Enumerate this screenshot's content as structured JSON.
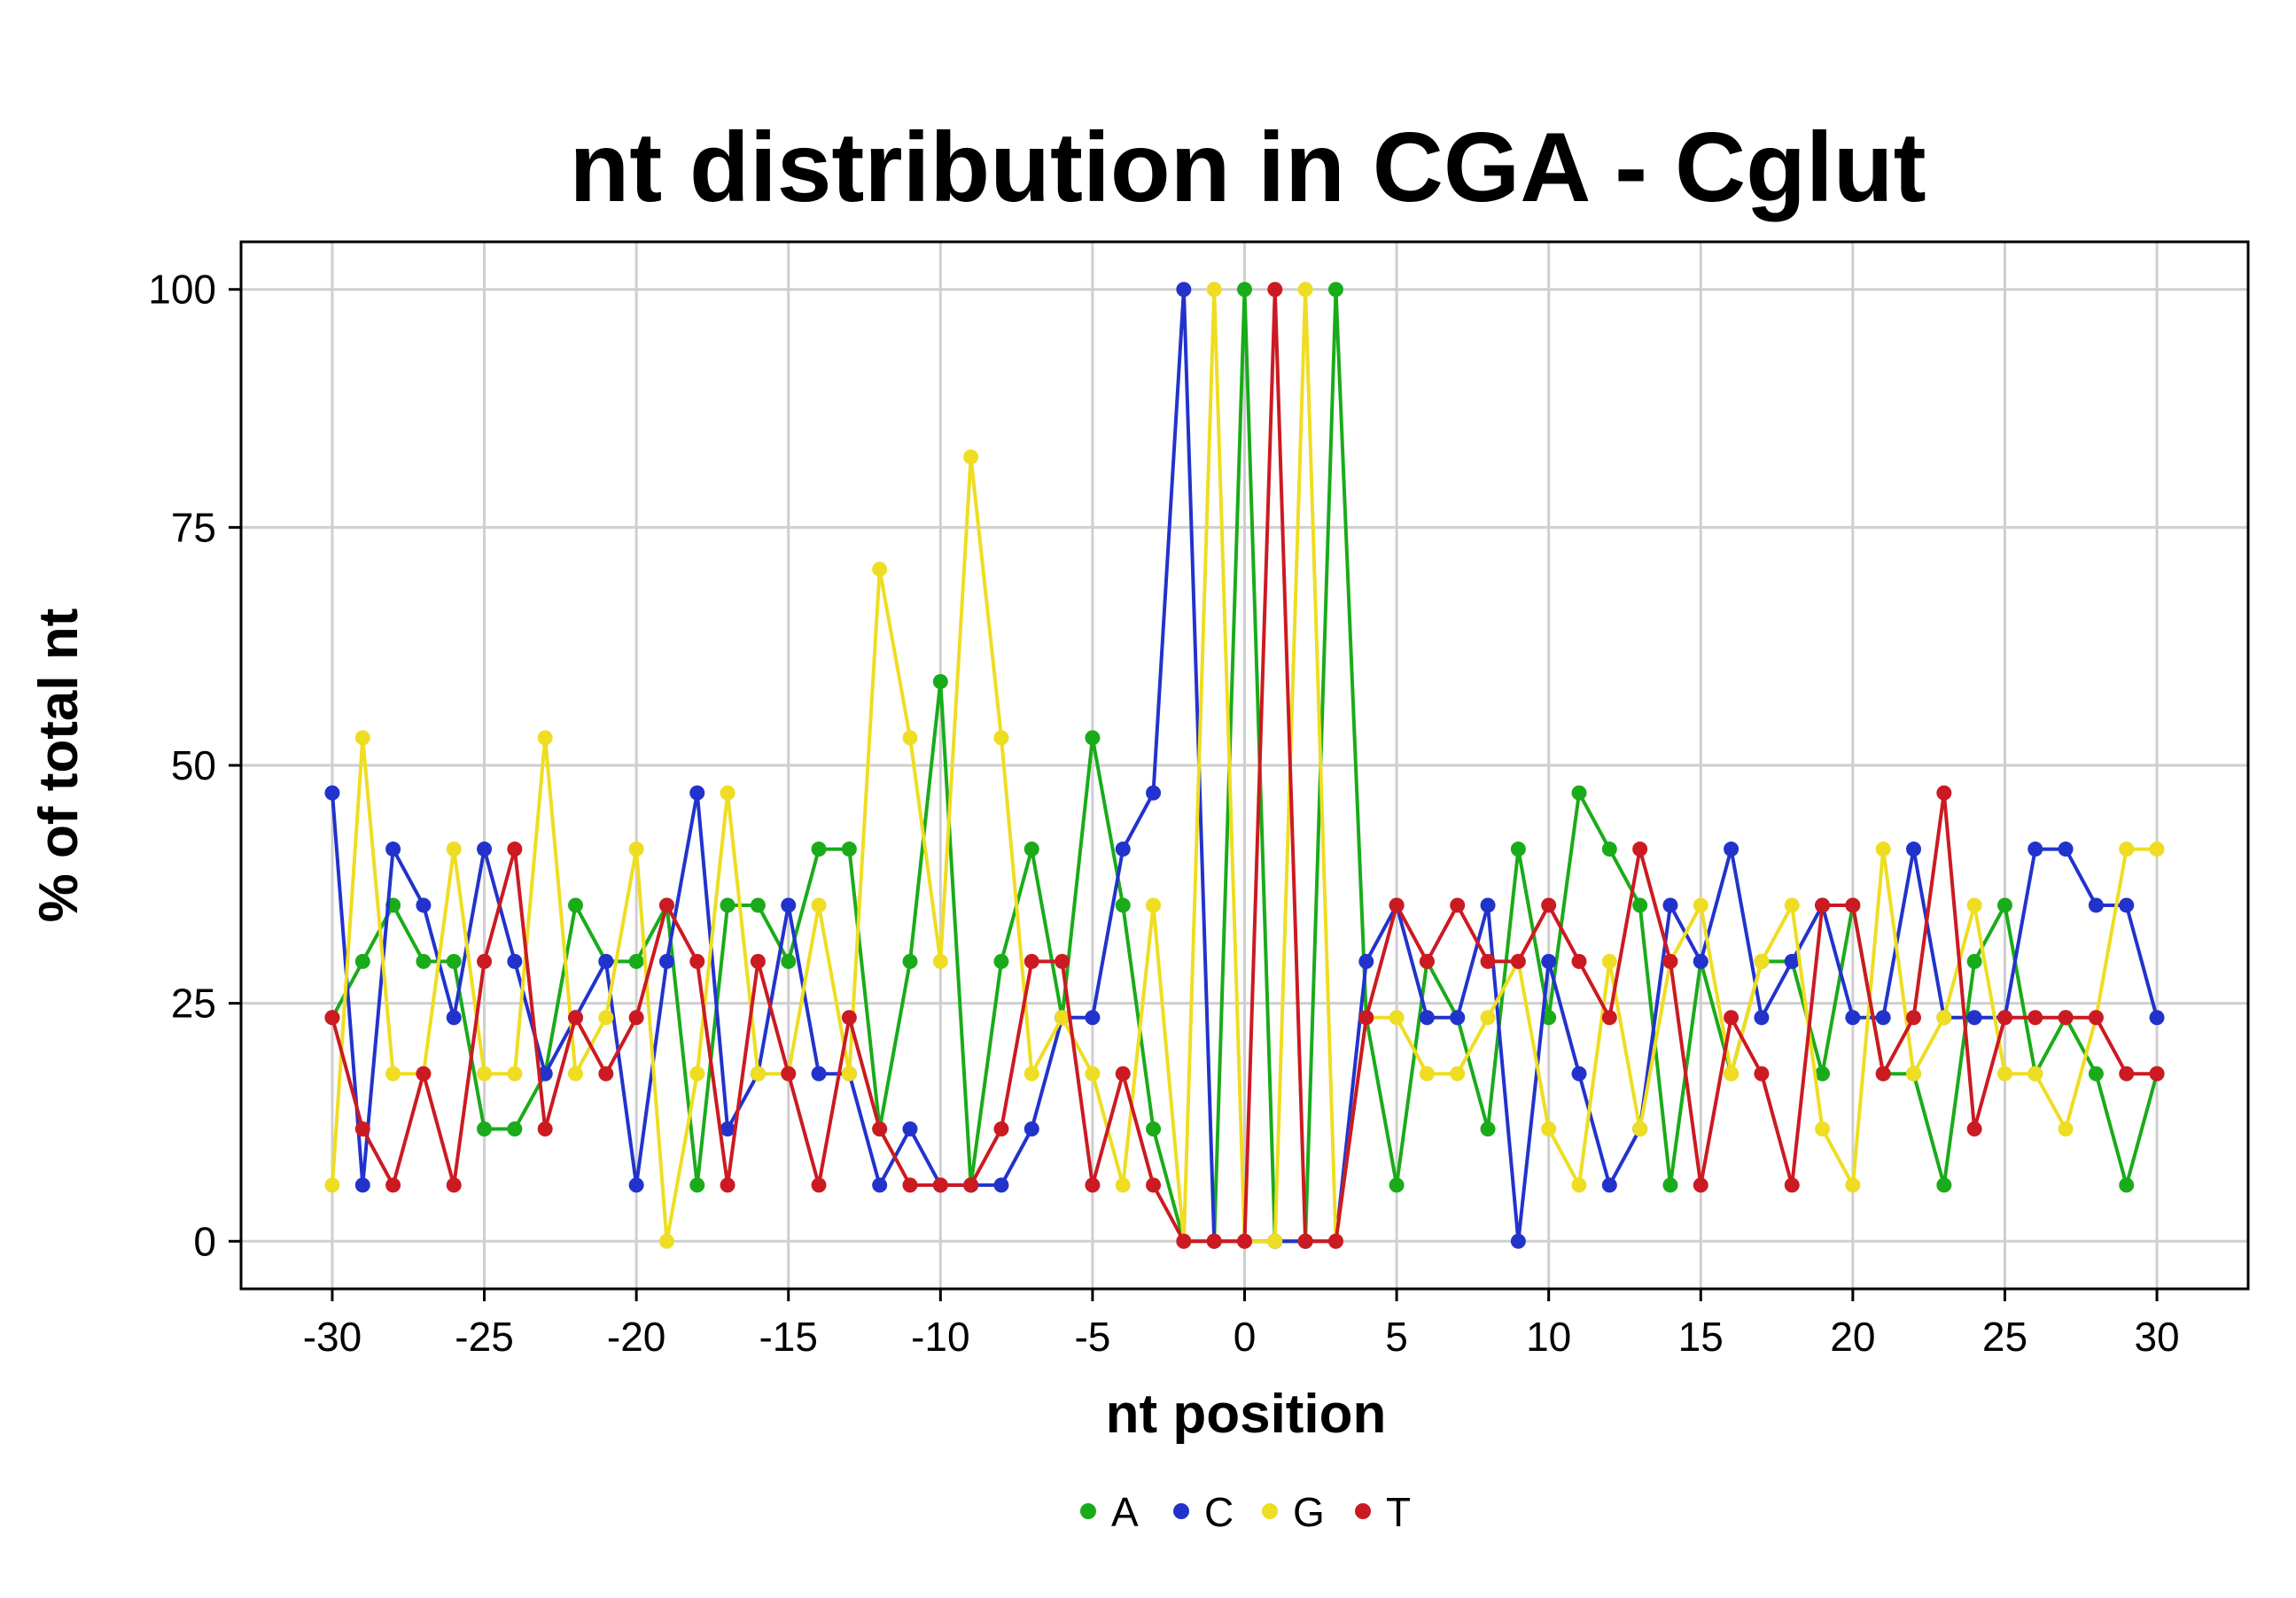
{
  "chart_data": {
    "type": "line",
    "title": "nt distribution in CGA - Cglut",
    "xlabel": "nt position",
    "ylabel": "% of total nt",
    "xlim": [
      -33,
      33
    ],
    "ylim": [
      -5,
      105
    ],
    "x_ticks": [
      -30,
      -25,
      -20,
      -15,
      -10,
      -5,
      0,
      5,
      10,
      15,
      20,
      25,
      30
    ],
    "x_tick_labels": [
      "-30",
      "-25",
      "-20",
      "-15",
      "-10",
      "-5",
      "0",
      "5",
      "10",
      "15",
      "20",
      "25",
      "30"
    ],
    "y_ticks": [
      0,
      25,
      50,
      75,
      100
    ],
    "y_tick_labels": [
      "0",
      "25",
      "50",
      "75",
      "100"
    ],
    "grid": true,
    "legend_position": "bottom-center",
    "x": [
      -30,
      -29,
      -28,
      -27,
      -26,
      -25,
      -24,
      -23,
      -22,
      -21,
      -20,
      -19,
      -18,
      -17,
      -16,
      -15,
      -14,
      -13,
      -12,
      -11,
      -10,
      -9,
      -8,
      -7,
      -6,
      -5,
      -4,
      -3,
      -2,
      -1,
      0,
      1,
      2,
      3,
      4,
      5,
      6,
      7,
      8,
      9,
      10,
      11,
      12,
      13,
      14,
      15,
      16,
      17,
      18,
      19,
      20,
      21,
      22,
      23,
      24,
      25,
      26,
      27,
      28,
      29,
      30
    ],
    "series": [
      {
        "name": "A",
        "color": "#1aab1a",
        "values": [
          23.5,
          29.4,
          35.3,
          29.4,
          29.4,
          11.8,
          11.8,
          17.6,
          35.3,
          29.4,
          29.4,
          35.3,
          5.9,
          35.3,
          35.3,
          29.4,
          41.2,
          41.2,
          11.8,
          29.4,
          58.8,
          5.9,
          29.4,
          41.2,
          23.5,
          52.9,
          35.3,
          11.8,
          0,
          0,
          100,
          0,
          0,
          100,
          23.5,
          5.9,
          29.4,
          23.5,
          11.8,
          41.2,
          23.5,
          47.1,
          41.2,
          35.3,
          5.9,
          29.4,
          17.6,
          29.4,
          29.4,
          17.6,
          35.3,
          17.6,
          17.6,
          5.9,
          29.4,
          35.3,
          17.6,
          23.5,
          17.6,
          5.9,
          17.6
        ]
      },
      {
        "name": "C",
        "color": "#2233cc",
        "values": [
          47.1,
          5.9,
          41.2,
          35.3,
          23.5,
          41.2,
          29.4,
          17.6,
          23.5,
          29.4,
          5.9,
          29.4,
          47.1,
          11.8,
          17.6,
          35.3,
          17.6,
          17.6,
          5.9,
          11.8,
          5.9,
          5.9,
          5.9,
          11.8,
          23.5,
          23.5,
          41.2,
          47.1,
          100,
          0,
          0,
          0,
          0,
          0,
          29.4,
          35.3,
          23.5,
          23.5,
          35.3,
          0,
          29.4,
          17.6,
          5.9,
          11.8,
          35.3,
          29.4,
          41.2,
          23.5,
          29.4,
          35.3,
          23.5,
          23.5,
          41.2,
          23.5,
          23.5,
          23.5,
          41.2,
          41.2,
          35.3,
          35.3,
          23.5
        ]
      },
      {
        "name": "G",
        "color": "#eedd22",
        "values": [
          5.9,
          52.9,
          17.6,
          17.6,
          41.2,
          17.6,
          17.6,
          52.9,
          17.6,
          23.5,
          41.2,
          0,
          17.6,
          47.1,
          17.6,
          17.6,
          35.3,
          17.6,
          70.6,
          52.9,
          29.4,
          82.4,
          52.9,
          17.6,
          23.5,
          17.6,
          5.9,
          35.3,
          0,
          100,
          0,
          0,
          100,
          0,
          23.5,
          23.5,
          17.6,
          17.6,
          23.5,
          29.4,
          11.8,
          5.9,
          29.4,
          11.8,
          29.4,
          35.3,
          17.6,
          29.4,
          35.3,
          11.8,
          5.9,
          41.2,
          17.6,
          23.5,
          35.3,
          17.6,
          17.6,
          11.8,
          23.5,
          41.2,
          41.2
        ]
      },
      {
        "name": "T",
        "color": "#cc1a22",
        "values": [
          23.5,
          11.8,
          5.9,
          17.6,
          5.9,
          29.4,
          41.2,
          11.8,
          23.5,
          17.6,
          23.5,
          35.3,
          29.4,
          5.9,
          29.4,
          17.6,
          5.9,
          23.5,
          11.8,
          5.9,
          5.9,
          5.9,
          11.8,
          29.4,
          29.4,
          5.9,
          17.6,
          5.9,
          0,
          0,
          0,
          100,
          0,
          0,
          23.5,
          35.3,
          29.4,
          35.3,
          29.4,
          29.4,
          35.3,
          29.4,
          23.5,
          41.2,
          29.4,
          5.9,
          23.5,
          17.6,
          5.9,
          35.3,
          35.3,
          17.6,
          23.5,
          47.1,
          11.8,
          23.5,
          23.5,
          23.5,
          23.5,
          17.6,
          17.6
        ]
      }
    ]
  }
}
